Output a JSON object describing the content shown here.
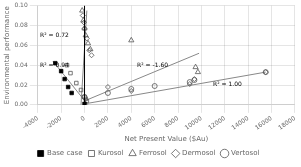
{
  "chart_data": {
    "type": "scatter",
    "xlabel": "Net Present Value ($Au)",
    "ylabel": "Environmental performance",
    "xlim": [
      -4000,
      18000
    ],
    "ylim": [
      0.0,
      0.1
    ],
    "xticks": [
      -4000,
      -2000,
      0,
      2000,
      4000,
      6000,
      8000,
      10000,
      12000,
      14000,
      16000,
      18000
    ],
    "yticks": [
      {
        "value": 0.0,
        "label": "0.00"
      },
      {
        "value": 0.02,
        "label": "0.02"
      },
      {
        "value": 0.04,
        "label": "0.04"
      },
      {
        "value": 0.06,
        "label": "0.06"
      },
      {
        "value": 0.08,
        "label": "0.08"
      },
      {
        "value": 0.1,
        "label": "0.10"
      }
    ],
    "grid": true,
    "legend": "bottom",
    "series": [
      {
        "name": "Base case",
        "color": "#000000",
        "marker": "square",
        "x": [
          -2500,
          -2000,
          -1700,
          -1400,
          -1100,
          0
        ],
        "values": [
          0.042,
          0.034,
          0.026,
          0.018,
          0.012,
          0.001
        ]
      },
      {
        "name": "Kurosol",
        "color": "#555555",
        "marker": "open_square",
        "x": [
          -1500,
          -1200,
          -700,
          -300,
          0,
          100,
          200
        ],
        "values": [
          0.04,
          0.032,
          0.022,
          0.015,
          0.008,
          0.006,
          0.004
        ]
      },
      {
        "name": "Ferrosol",
        "color": "#555555",
        "marker": "open_triangle",
        "x": [
          -200,
          -100,
          0,
          100,
          300,
          500,
          4000,
          9500,
          9700
        ],
        "values": [
          0.095,
          0.085,
          0.077,
          0.07,
          0.062,
          0.056,
          0.065,
          0.038,
          0.033
        ]
      },
      {
        "name": "Dermosol",
        "color": "#555555",
        "marker": "open_diamond",
        "x": [
          -150,
          -50,
          0,
          200,
          400,
          600,
          2000,
          4000,
          9000,
          9400,
          15500
        ],
        "values": [
          0.09,
          0.083,
          0.077,
          0.067,
          0.055,
          0.05,
          0.018,
          0.014,
          0.021,
          0.026,
          0.033
        ]
      },
      {
        "name": "Vertosol",
        "color": "#555555",
        "marker": "open_circle",
        "x": [
          0,
          2000,
          4000,
          6000,
          9000,
          9400,
          15500
        ],
        "values": [
          0.008,
          0.012,
          0.016,
          0.019,
          0.023,
          0.025,
          0.033
        ]
      },
      {
        "type": "line",
        "color": "#888888",
        "x": [
          -2700,
          300
        ],
        "values": [
          0.044,
          0.0
        ]
      },
      {
        "type": "line",
        "color": "#888888",
        "x": [
          -300,
          200
        ],
        "values": [
          0.0,
          0.095
        ]
      },
      {
        "type": "line",
        "color": "#888888",
        "x": [
          0,
          9800
        ],
        "values": [
          0.004,
          0.052
        ]
      },
      {
        "type": "line",
        "color": "#888888",
        "x": [
          0,
          15500
        ],
        "values": [
          0.001,
          0.033
        ]
      }
    ],
    "annotations": [
      {
        "text": "R² = 0.94",
        "x": -3800,
        "y": 0.038
      },
      {
        "text": "R² = 0.72",
        "x": -3800,
        "y": 0.068
      },
      {
        "text": "R² = -1.60",
        "x": 4500,
        "y": 0.038
      },
      {
        "text": "R² = 1.00",
        "x": 11000,
        "y": 0.019
      }
    ],
    "vlines": [
      {
        "x": 0,
        "color": "#000000"
      }
    ]
  }
}
